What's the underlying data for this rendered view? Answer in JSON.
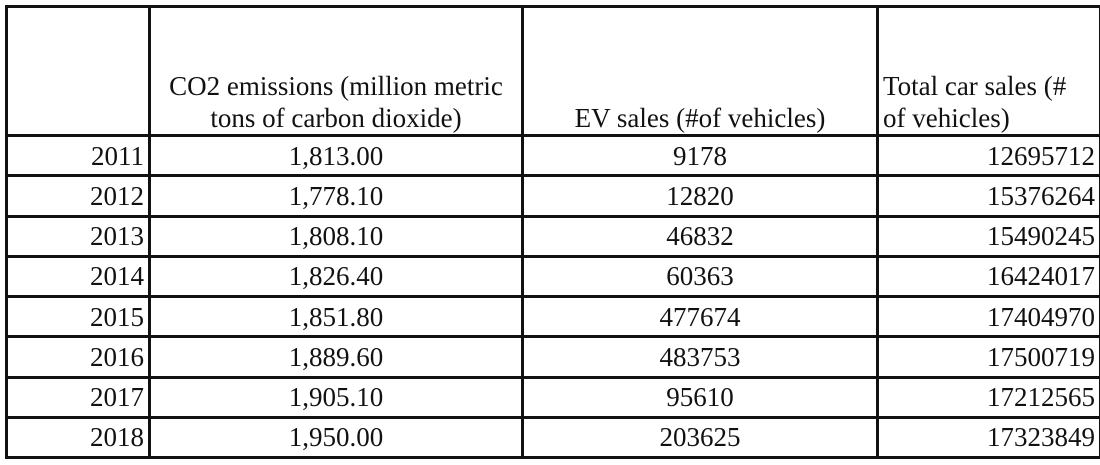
{
  "headers": {
    "year": "",
    "co2": "CO2 emissions (million metric tons of carbon dioxide)",
    "ev": "EV sales (#of vehicles)",
    "total": "Total car sales (# of vehicles)"
  },
  "rows": [
    {
      "year": "2011",
      "co2": "1,813.00",
      "ev": "9178",
      "total": "12695712"
    },
    {
      "year": "2012",
      "co2": "1,778.10",
      "ev": "12820",
      "total": "15376264"
    },
    {
      "year": "2013",
      "co2": "1,808.10",
      "ev": "46832",
      "total": "15490245"
    },
    {
      "year": "2014",
      "co2": "1,826.40",
      "ev": "60363",
      "total": "16424017"
    },
    {
      "year": "2015",
      "co2": "1,851.80",
      "ev": "477674",
      "total": "17404970"
    },
    {
      "year": "2016",
      "co2": "1,889.60",
      "ev": "483753",
      "total": "17500719"
    },
    {
      "year": "2017",
      "co2": "1,905.10",
      "ev": "95610",
      "total": "17212565"
    },
    {
      "year": "2018",
      "co2": "1,950.00",
      "ev": "203625",
      "total": "17323849"
    }
  ]
}
